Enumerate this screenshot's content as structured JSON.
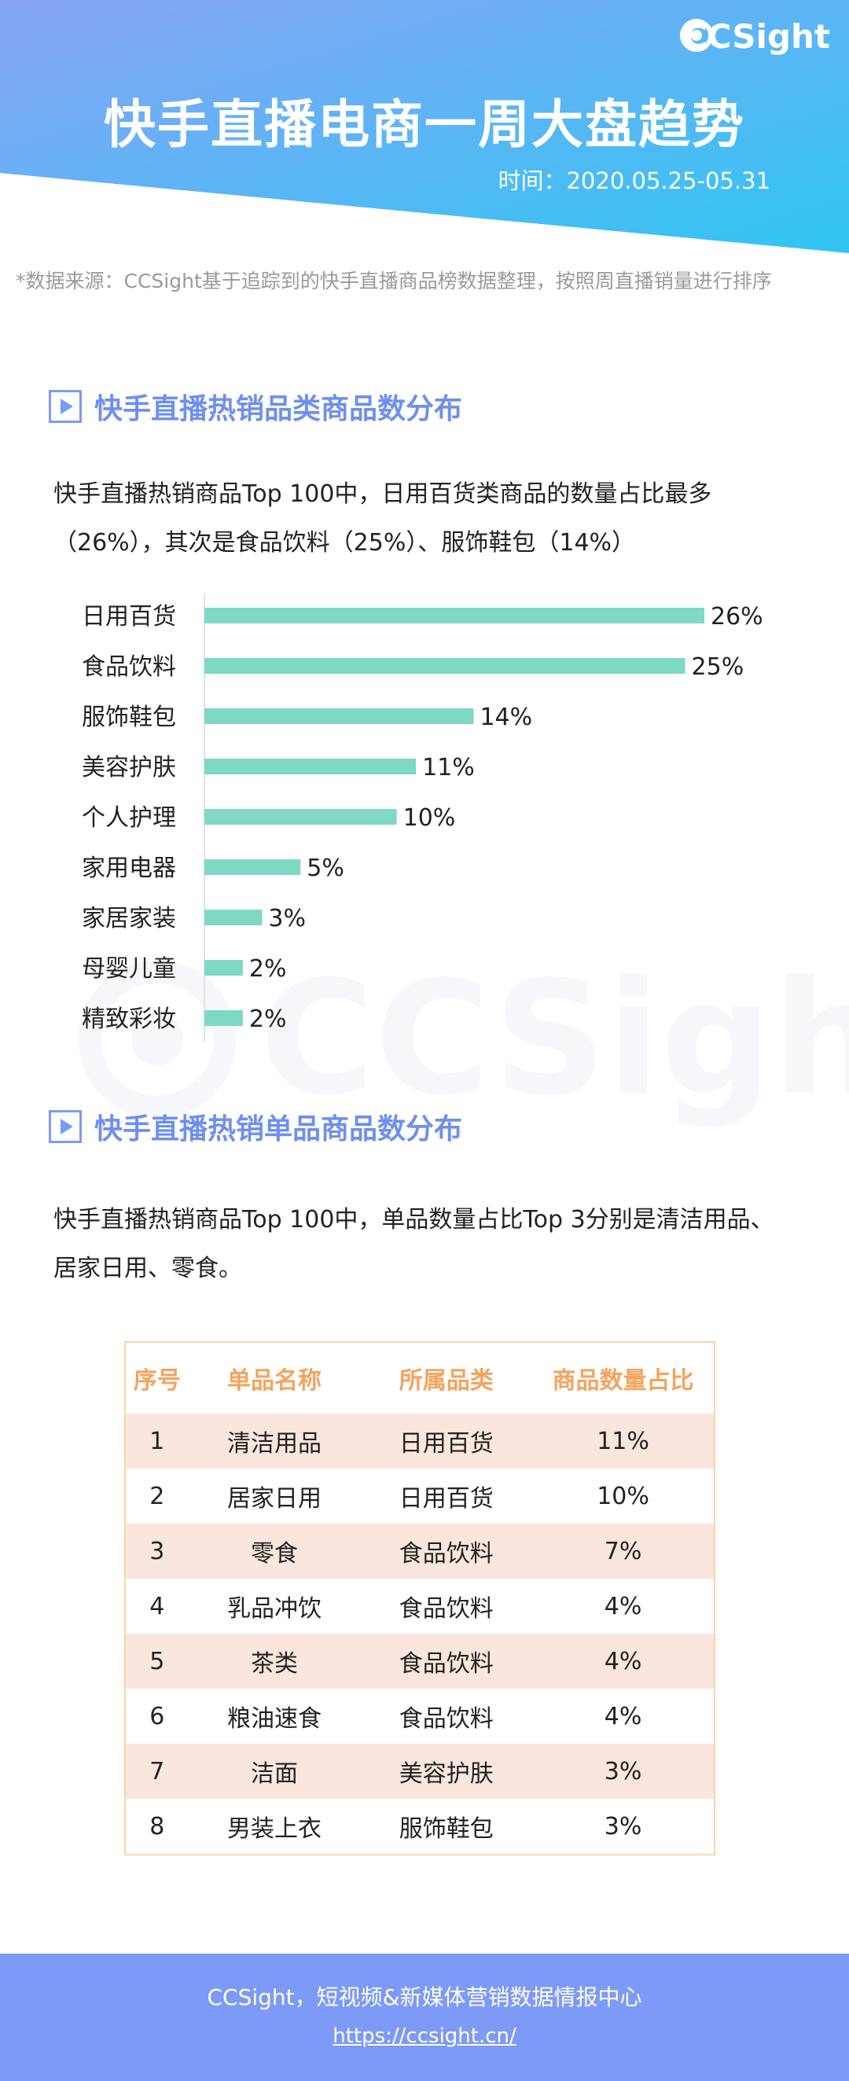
{
  "header": {
    "logo_text": "CCSight",
    "title": "快手直播电商一周大盘趋势",
    "date": "时间：2020.05.25-05.31",
    "source": "*数据来源：CCSight基于追踪到的快手直播商品榜数据整理，按照周直播销量进行排序",
    "gradient_start": "#8aa4f7",
    "gradient_end": "#2fc6f3"
  },
  "section1": {
    "title": "快手直播热销品类商品数分布",
    "description_line1": "快手直播热销商品Top 100中，日用百货类商品的数量占比最多",
    "description_line2": "（26%），其次是食品饮料（25%）、服饰鞋包（14%）"
  },
  "chart_data": {
    "type": "bar",
    "orientation": "horizontal",
    "categories": [
      "日用百货",
      "食品饮料",
      "服饰鞋包",
      "美容护肤",
      "个人护理",
      "家用电器",
      "家居家装",
      "母婴儿童",
      "精致彩妆"
    ],
    "values": [
      26,
      25,
      14,
      11,
      10,
      5,
      3,
      2,
      2
    ],
    "value_labels": [
      "26%",
      "25%",
      "14%",
      "11%",
      "10%",
      "5%",
      "3%",
      "2%",
      "2%"
    ],
    "unit": "%",
    "xlim": [
      0,
      26
    ],
    "bar_color": "#7fd8c4",
    "grid": false
  },
  "watermark": {
    "text": "CCSight"
  },
  "section2": {
    "title": "快手直播热销单品商品数分布",
    "description_line1": "快手直播热销商品Top 100中，单品数量占比Top 3分别是清洁用品、",
    "description_line2": "居家日用、零食。"
  },
  "table": {
    "headers": [
      "序号",
      "单品名称",
      "所属品类",
      "商品数量占比"
    ],
    "rows": [
      [
        "1",
        "清洁用品",
        "日用百货",
        "11%"
      ],
      [
        "2",
        "居家日用",
        "日用百货",
        "10%"
      ],
      [
        "3",
        "零食",
        "食品饮料",
        "7%"
      ],
      [
        "4",
        "乳品冲饮",
        "食品饮料",
        "4%"
      ],
      [
        "5",
        "茶类",
        "食品饮料",
        "4%"
      ],
      [
        "6",
        "粮油速食",
        "食品饮料",
        "4%"
      ],
      [
        "7",
        "洁面",
        "美容护肤",
        "3%"
      ],
      [
        "8",
        "男装上衣",
        "服饰鞋包",
        "3%"
      ]
    ]
  },
  "footer": {
    "line1": "CCSight，短视频&新媒体营销数据情报中心",
    "link": "https://ccsight.cn/"
  }
}
